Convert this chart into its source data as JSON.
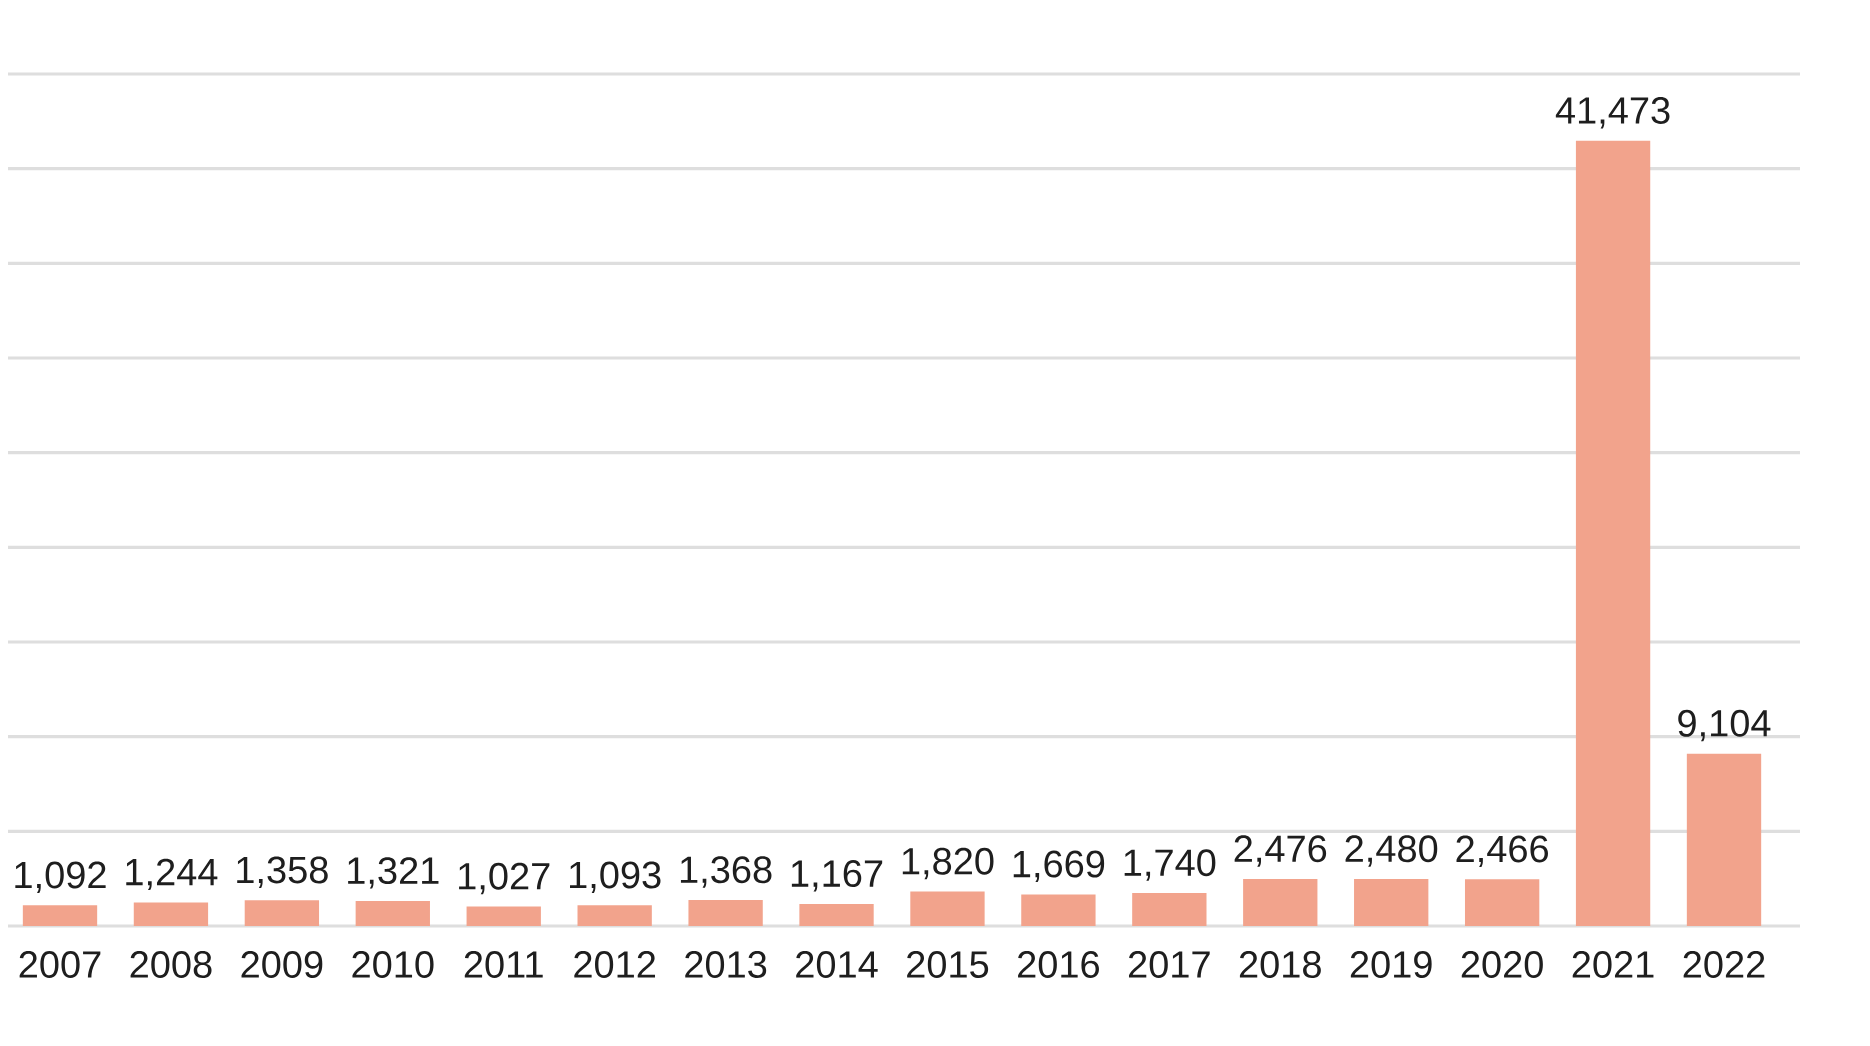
{
  "chart_data": {
    "type": "bar",
    "categories": [
      "2007",
      "2008",
      "2009",
      "2010",
      "2011",
      "2012",
      "2013",
      "2014",
      "2015",
      "2016",
      "2017",
      "2018",
      "2019",
      "2020",
      "2021",
      "2022"
    ],
    "values": [
      1092,
      1244,
      1358,
      1321,
      1027,
      1093,
      1368,
      1167,
      1820,
      1669,
      1740,
      2476,
      2480,
      2466,
      41473,
      9104
    ],
    "value_labels": [
      "1,092",
      "1,244",
      "1,358",
      "1,321",
      "1,027",
      "1,093",
      "1,368",
      "1,167",
      "1,820",
      "1,669",
      "1,740",
      "2,476",
      "2,480",
      "2,466",
      "41,473",
      "9,104"
    ],
    "color": "#f2a38c",
    "ylim": [
      0,
      45000
    ],
    "yticks": [
      {
        "value": 0,
        "label": null
      },
      {
        "value": 5000,
        "label": null
      },
      {
        "value": 10000,
        "label": null
      },
      {
        "value": 15000,
        "label": null
      },
      {
        "value": 20000,
        "label": null
      },
      {
        "value": 25000,
        "label": null
      },
      {
        "value": 30000,
        "label": null
      },
      {
        "value": 35000,
        "label": null
      },
      {
        "value": 40000,
        "label": null
      },
      {
        "value": 45000,
        "label": null
      }
    ],
    "grid": "y",
    "tick_labels": "x"
  }
}
